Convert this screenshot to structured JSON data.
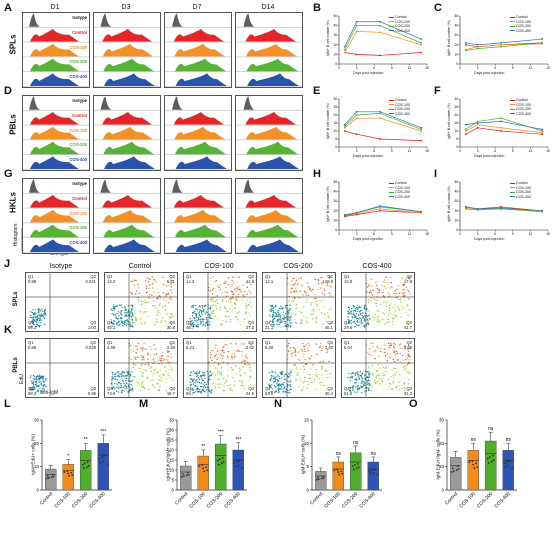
{
  "panel_letters": [
    "A",
    "B",
    "C",
    "D",
    "E",
    "F",
    "G",
    "H",
    "I",
    "J",
    "K",
    "L",
    "M",
    "N",
    "O"
  ],
  "hist": {
    "days": [
      "D1",
      "D3",
      "D7",
      "D14"
    ],
    "rows": [
      {
        "letter": "A",
        "label": "SPLs"
      },
      {
        "letter": "D",
        "label": "PBLs"
      },
      {
        "letter": "G",
        "label": "HKLs"
      }
    ],
    "track_labels": [
      "Isotype",
      "Control",
      "COS-100",
      "COS-200",
      "COS-400"
    ],
    "track_colors": [
      "#555555",
      "#e41a1c",
      "#f28b1e",
      "#4daf2a",
      "#1f4aa8"
    ],
    "y_axis": "Histogram",
    "x_axis": "anti-IgM"
  },
  "lines": {
    "series": [
      "Control",
      "COS-100",
      "COS-200",
      "COS-400"
    ],
    "colors": {
      "Control": "#e41a1c",
      "COS-100": "#f28b1e",
      "COS-200": "#4daf2a",
      "COS-400": "#1f77b4"
    },
    "xlabel": "Days post-injection",
    "ylabel_left": "IgM+ B cell number (%)",
    "ylabel_right": "IgM+ B cell number (%)",
    "panels": [
      {
        "letter": "B",
        "ylim": [
          0,
          50
        ],
        "yticks": [
          "0",
          "10",
          "20",
          "30",
          "40",
          "50"
        ]
      },
      {
        "letter": "C",
        "ylim": [
          0,
          50
        ],
        "yticks": [
          "0",
          "10",
          "20",
          "30",
          "40",
          "50"
        ]
      },
      {
        "letter": "E",
        "ylim": [
          0,
          30
        ],
        "yticks": [
          "0",
          "5",
          "10",
          "15",
          "20",
          "25",
          "30"
        ]
      },
      {
        "letter": "F",
        "ylim": [
          0,
          30
        ],
        "yticks": [
          "0",
          "5",
          "10",
          "15",
          "20",
          "25",
          "30"
        ]
      },
      {
        "letter": "H",
        "ylim": [
          0,
          50
        ],
        "yticks": [
          "0",
          "10",
          "20",
          "30",
          "40",
          "50"
        ]
      },
      {
        "letter": "I",
        "ylim": [
          0,
          50
        ],
        "yticks": [
          "0",
          "10",
          "20",
          "30",
          "40",
          "50"
        ]
      }
    ],
    "xticks": [
      "0",
      "3",
      "6",
      "9",
      "12",
      "15"
    ]
  },
  "scatter": {
    "columns": [
      "Isotype",
      "Control",
      "COS-100",
      "COS-200",
      "COS-400"
    ],
    "rows": [
      {
        "letter": "J",
        "label": "SPLs",
        "quads": [
          {
            "Q1": "0.88",
            "Q2": "0.041",
            "Q3": "1.00",
            "Q4": "98.1"
          },
          {
            "Q1": "13.2",
            "Q2": "6.81",
            "Q3": "30.8",
            "Q4": "45.1"
          },
          {
            "Q1": "14.3",
            "Q2": "11.8",
            "Q3": "27.2",
            "Q4": "46.7"
          },
          {
            "Q1": "12.1",
            "Q2": "16.8",
            "Q3": "40.1",
            "Q4": "31.1"
          },
          {
            "Q1": "10.8",
            "Q2": "17.9",
            "Q3": "41.7",
            "Q4": "29.6"
          }
        ]
      },
      {
        "letter": "K",
        "label": "PBLs",
        "quads": [
          {
            "Q1": "0.86",
            "Q2": "0.028",
            "Q3": "0.86",
            "Q4": "98.3"
          },
          {
            "Q1": "4.89",
            "Q2": "2.48",
            "Q3": "18.7",
            "Q4": "73.9"
          },
          {
            "Q1": "6.21",
            "Q2": "2.62",
            "Q3": "24.5",
            "Q4": "66.7"
          },
          {
            "Q1": "5.20",
            "Q2": "2.43",
            "Q3": "30.4",
            "Q4": "62.0"
          },
          {
            "Q1": "5.04",
            "Q2": "2.59",
            "Q3": "31.3",
            "Q4": "61.0"
          }
        ]
      }
    ],
    "x_axis": "anti-IgM",
    "y_axis": "EdU"
  },
  "chart_data": [
    {
      "type": "bar",
      "panel": "L",
      "ylabel": "IgM+EdU+ cells (%)",
      "categories": [
        "Control",
        "COS-100",
        "COS-200",
        "COS-400"
      ],
      "values": [
        9,
        11,
        17,
        20
      ],
      "ylim": [
        0,
        30
      ],
      "yticks": [
        "0",
        "10",
        "20",
        "30"
      ],
      "sig": [
        "",
        "*",
        "**",
        "***"
      ]
    },
    {
      "type": "bar",
      "panel": "M",
      "ylabel": "IgM+EdU+/IgM+ cells (%)",
      "categories": [
        "Control",
        "COS-100",
        "COS-200",
        "COS-400"
      ],
      "values": [
        12,
        17,
        23,
        20
      ],
      "ylim": [
        0,
        35
      ],
      "yticks": [
        "0",
        "5",
        "10",
        "15",
        "20",
        "25",
        "30",
        "35"
      ],
      "sig": [
        "",
        "**",
        "***",
        "***"
      ]
    },
    {
      "type": "bar",
      "panel": "N",
      "ylabel": "IgM-EdU+ cells (%)",
      "categories": [
        "Control",
        "COS-100",
        "COS-200",
        "COS-400"
      ],
      "values": [
        4,
        6,
        8,
        6
      ],
      "ylim": [
        0,
        15
      ],
      "yticks": [
        "0",
        "5",
        "10",
        "15"
      ],
      "sig": [
        "",
        "ns",
        "ns",
        "ns"
      ]
    },
    {
      "type": "bar",
      "panel": "O",
      "ylabel": "IgM-EdU+/IgM- cells (%)",
      "categories": [
        "Control",
        "COS-100",
        "COS-200",
        "COS-400"
      ],
      "values": [
        14,
        17,
        21,
        17
      ],
      "ylim": [
        0,
        30
      ],
      "yticks": [
        "0",
        "10",
        "20",
        "30"
      ],
      "sig": [
        "",
        "ns",
        "ns",
        "ns"
      ]
    }
  ],
  "bar_colors": [
    "#9a9a9a",
    "#f28b1e",
    "#4daf2a",
    "#2c55b5"
  ]
}
